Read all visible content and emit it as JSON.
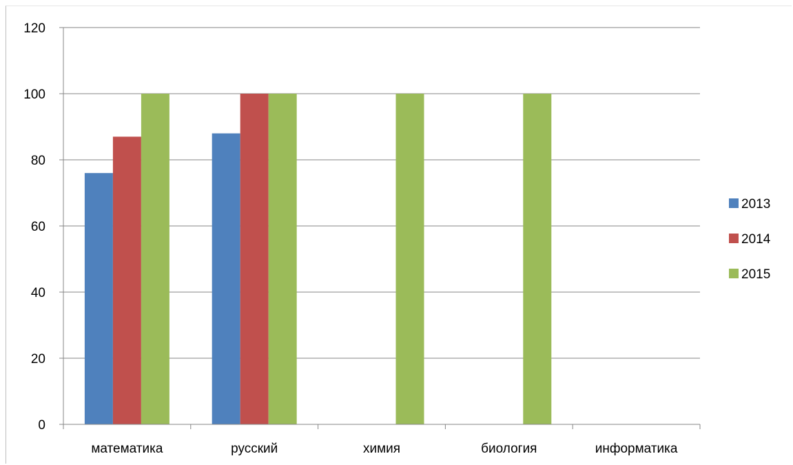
{
  "chart_data": {
    "type": "bar",
    "categories": [
      "математика",
      "русский",
      "химия",
      "биология",
      "информатика"
    ],
    "series": [
      {
        "name": "2013",
        "color": "#4f81bd",
        "values": [
          76,
          88,
          0,
          0,
          0
        ]
      },
      {
        "name": "2014",
        "color": "#c0504d",
        "values": [
          87,
          100,
          0,
          0,
          0
        ]
      },
      {
        "name": "2015",
        "color": "#9bbb59",
        "values": [
          100,
          100,
          100,
          100,
          0
        ]
      }
    ],
    "ylim": [
      0,
      120
    ],
    "yticks": [
      "0",
      "20",
      "40",
      "60",
      "80",
      "100",
      "120"
    ],
    "grid": true,
    "legend": "right",
    "title": "",
    "xlabel": "",
    "ylabel": ""
  }
}
